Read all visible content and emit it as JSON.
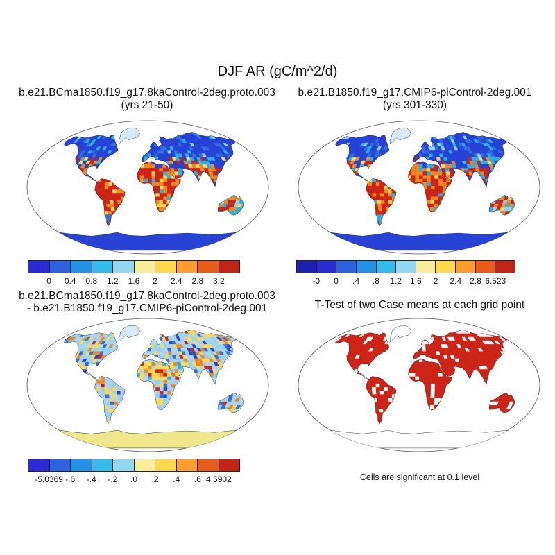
{
  "title": "DJF AR (gC/m^2/d)",
  "panels": {
    "top_left": {
      "title_line1": "b.e21.BCma1850.f19_g17.8kaControl-2deg.proto.003",
      "title_line2": "(yrs 21-50)",
      "scheme": "state",
      "seed": 11,
      "colorbar": {
        "colors": [
          "#2b2bd4",
          "#2d62de",
          "#2492e6",
          "#35bcec",
          "#93d8f2",
          "#f9ef9b",
          "#ffd94d",
          "#ff9e2e",
          "#ea5c1c",
          "#c22417"
        ],
        "labels": [
          "0",
          "0.4",
          "0.8",
          "1.2",
          "1.6",
          "2",
          "2.4",
          "2.8",
          "3.2"
        ]
      }
    },
    "top_right": {
      "title_line1": "b.e21.B1850.f19_g17.CMIP6-piControl-2deg.001",
      "title_line2": "(yrs 301-330)",
      "scheme": "state",
      "seed": 29,
      "colorbar": {
        "colors": [
          "#1f1fb0",
          "#2b2bd4",
          "#2d62de",
          "#2492e6",
          "#35bcec",
          "#93d8f2",
          "#f9ef9b",
          "#ffd94d",
          "#ff9e2e",
          "#ea5c1c",
          "#c22417"
        ],
        "labels": [
          "-0",
          "0",
          ".4",
          ".8",
          "1.2",
          "1.6",
          "2",
          "2.4",
          "2.8",
          "6.523"
        ]
      }
    },
    "bottom_left": {
      "title_line1": "b.e21.BCma1850.f19_g17.8kaControl-2deg.proto.003",
      "title_line2": "- b.e21.B1850.f19_g17.CMIP6-piControl-2deg.001",
      "scheme": "diff",
      "seed": 47,
      "colorbar": {
        "colors": [
          "#2b2bd4",
          "#2d62de",
          "#2492e6",
          "#35bcec",
          "#93d8f2",
          "#f9ef9b",
          "#ffd94d",
          "#ff9e2e",
          "#ea5c1c",
          "#c22417"
        ],
        "labels": [
          "-5.0369",
          "-.6",
          "-.4",
          "-.2",
          ".0",
          ".2",
          ".4",
          ".6",
          "4.5902"
        ]
      }
    },
    "bottom_right": {
      "title_line1": "T-Test of two Case means at each grid point",
      "caption": "Cells are significant at 0.1 level",
      "scheme": "ttest",
      "seed": 63
    }
  },
  "palette": {
    "deep_blue": "#2743d6",
    "blue": "#2f6fe0",
    "cyan": "#29b2ea",
    "light_blue": "#8fd4f2",
    "pale_blue": "#aad3ec",
    "yellow": "#ffd94d",
    "orange": "#f08a1f",
    "red": "#cc2417",
    "pale_yellow": "#f0e68c",
    "white": "#ffffff",
    "coastline": "#333333"
  },
  "chart_data": [
    {
      "type": "heatmap",
      "subtype": "global-map",
      "projection": "robinson",
      "title": "b.e21.BCma1850.f19_g17.8kaControl-2deg.proto.003",
      "subtitle": "(yrs 21-50)",
      "variable": "DJF AR",
      "units": "gC/m^2/d",
      "colorbar_ticks": [
        0,
        0.4,
        0.8,
        1.2,
        1.6,
        2,
        2.4,
        2.8,
        3.2
      ],
      "pattern": "low values (dark blue, <0.4) over high northern latitudes and Antarctica; high values (red/orange, >2.4) over the tropics: Amazon, southern Africa, Southeast Asia, northern Australia; mixed cyan/yellow over midlatitudes"
    },
    {
      "type": "heatmap",
      "subtype": "global-map",
      "projection": "robinson",
      "title": "b.e21.B1850.f19_g17.CMIP6-piControl-2deg.001",
      "subtitle": "(yrs 301-330)",
      "variable": "DJF AR",
      "units": "gC/m^2/d",
      "colorbar_ticks": [
        0,
        0,
        0.4,
        0.8,
        1.2,
        1.6,
        2,
        2.4,
        2.8,
        6.523
      ],
      "pattern": "same spatial pattern as the 8ka control case: blue over northern continents and Antarctica, red over tropical South America, Africa, South/Southeast Asia and northern Australia"
    },
    {
      "type": "heatmap",
      "subtype": "global-map-difference",
      "projection": "robinson",
      "title": "b.e21.BCma1850.f19_g17.8kaControl-2deg.proto.003 - b.e21.B1850.f19_g17.CMIP6-piControl-2deg.001",
      "variable": "DJF AR difference",
      "units": "gC/m^2/d",
      "colorbar_ticks": [
        -5.0369,
        -0.6,
        -0.4,
        -0.2,
        0,
        0.2,
        0.4,
        0.6,
        4.5902
      ],
      "pattern": "mostly small near-zero / slightly negative differences (pale blue) with scattered positive patches (yellow/orange) over North Africa, South Asia and parts of the Americas; Antarctica near zero (pale yellow)"
    },
    {
      "type": "heatmap",
      "subtype": "significance-map",
      "projection": "robinson",
      "title": "T-Test of two Case means at each grid point",
      "caption": "Cells are significant at 0.1 level",
      "pattern": "significant cells shown solid red covering most vegetated land areas; Greenland and Antarctica unshaded"
    }
  ]
}
